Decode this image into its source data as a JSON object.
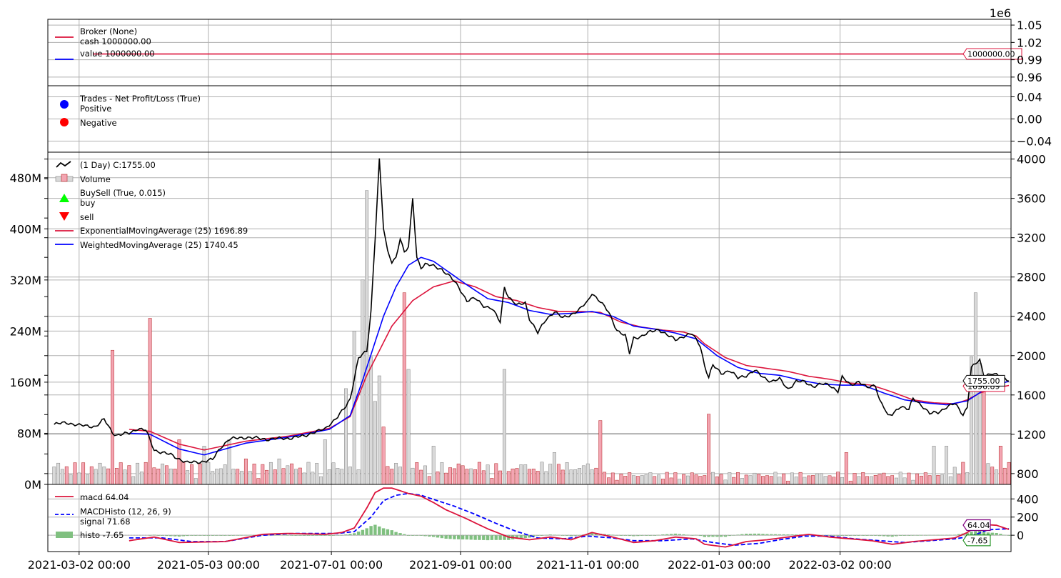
{
  "chart_data": {
    "type": "line",
    "x_axis": {
      "tick_labels": [
        "2021-03-02 00:00",
        "2021-05-03 00:00",
        "2021-07-01 00:00",
        "2021-09-01 00:00",
        "2021-11-01 00:00",
        "2022-01-03 00:00",
        "2022-03-02 00:00"
      ],
      "range_days": [
        -15,
        447
      ]
    },
    "broker_panel": {
      "exponent_label": "1e6",
      "yticks": [
        "1.05",
        "1.02",
        "0.99",
        "0.96"
      ],
      "ylim": [
        0.945,
        1.06
      ],
      "legend": [
        {
          "text": "Broker (None)\ncash 1000000.00",
          "color": "#dc143c"
        },
        {
          "text": "value 1000000.00",
          "color": "#0000ff"
        }
      ],
      "value": 1.0,
      "value_tag": "1000000.00"
    },
    "trades_panel": {
      "yticks": [
        "0.04",
        "0.00",
        "−0.04"
      ],
      "ylim": [
        -0.06,
        0.06
      ],
      "legend": [
        {
          "text": "Trades - Net Profit/Loss (True)\nPositive",
          "color": "#0000ff"
        },
        {
          "text": "Negative",
          "color": "#ff0000"
        }
      ]
    },
    "price_panel": {
      "yticks_right": [
        "4000",
        "3600",
        "3200",
        "2800",
        "2400",
        "2000",
        "1600",
        "1200",
        "800"
      ],
      "yticks_left": [
        "480M",
        "400M",
        "320M",
        "240M",
        "160M",
        "80M",
        "0M"
      ],
      "price_ylim": [
        690,
        4070
      ],
      "volume_ylim": [
        0,
        520
      ],
      "legend": [
        {
          "text": " (1 Day) C:1755.00",
          "kind": "price"
        },
        {
          "text": "Volume",
          "kind": "volume"
        },
        {
          "text": "BuySell (True, 0.015)\nbuy",
          "kind": "buy"
        },
        {
          "text": "sell",
          "kind": "sell"
        },
        {
          "text": "ExponentialMovingAverage (25) 1696.89",
          "kind": "ema"
        },
        {
          "text": "WeightedMovingAverage (25) 1740.45",
          "kind": "wma"
        }
      ],
      "close_tag": "1755.00",
      "ema_tag": "1696.89",
      "close_keypoints": [
        [
          -12,
          1300
        ],
        [
          -6,
          1320
        ],
        [
          0,
          1290
        ],
        [
          8,
          1280
        ],
        [
          12,
          1350
        ],
        [
          16,
          1220
        ],
        [
          18,
          1190
        ],
        [
          24,
          1210
        ],
        [
          28,
          1260
        ],
        [
          32,
          1240
        ],
        [
          36,
          1040
        ],
        [
          44,
          990
        ],
        [
          52,
          910
        ],
        [
          58,
          920
        ],
        [
          64,
          940
        ],
        [
          68,
          1070
        ],
        [
          72,
          1150
        ],
        [
          80,
          1170
        ],
        [
          90,
          1150
        ],
        [
          100,
          1160
        ],
        [
          108,
          1180
        ],
        [
          112,
          1220
        ],
        [
          118,
          1250
        ],
        [
          120,
          1300
        ],
        [
          124,
          1380
        ],
        [
          128,
          1480
        ],
        [
          130,
          1560
        ],
        [
          134,
          1980
        ],
        [
          138,
          2040
        ],
        [
          140,
          2450
        ],
        [
          142,
          3200
        ],
        [
          144,
          4000
        ],
        [
          146,
          3300
        ],
        [
          148,
          3050
        ],
        [
          150,
          2950
        ],
        [
          152,
          3000
        ],
        [
          154,
          3200
        ],
        [
          156,
          3050
        ],
        [
          158,
          3100
        ],
        [
          160,
          3600
        ],
        [
          162,
          3000
        ],
        [
          164,
          2900
        ],
        [
          166,
          2930
        ],
        [
          170,
          2910
        ],
        [
          174,
          2880
        ],
        [
          178,
          2800
        ],
        [
          182,
          2700
        ],
        [
          186,
          2560
        ],
        [
          190,
          2580
        ],
        [
          194,
          2510
        ],
        [
          198,
          2480
        ],
        [
          202,
          2340
        ],
        [
          204,
          2700
        ],
        [
          206,
          2600
        ],
        [
          210,
          2510
        ],
        [
          214,
          2540
        ],
        [
          216,
          2380
        ],
        [
          220,
          2230
        ],
        [
          224,
          2370
        ],
        [
          228,
          2450
        ],
        [
          232,
          2380
        ],
        [
          236,
          2420
        ],
        [
          240,
          2470
        ],
        [
          244,
          2550
        ],
        [
          246,
          2640
        ],
        [
          250,
          2550
        ],
        [
          254,
          2440
        ],
        [
          258,
          2260
        ],
        [
          262,
          2200
        ],
        [
          264,
          2020
        ],
        [
          266,
          2180
        ],
        [
          270,
          2200
        ],
        [
          274,
          2240
        ],
        [
          278,
          2270
        ],
        [
          282,
          2210
        ],
        [
          286,
          2160
        ],
        [
          290,
          2200
        ],
        [
          294,
          2220
        ],
        [
          298,
          2100
        ],
        [
          300,
          1900
        ],
        [
          302,
          1780
        ],
        [
          304,
          1900
        ],
        [
          308,
          1820
        ],
        [
          312,
          1850
        ],
        [
          316,
          1770
        ],
        [
          320,
          1800
        ],
        [
          324,
          1850
        ],
        [
          328,
          1780
        ],
        [
          332,
          1740
        ],
        [
          336,
          1760
        ],
        [
          340,
          1660
        ],
        [
          344,
          1740
        ],
        [
          348,
          1730
        ],
        [
          352,
          1690
        ],
        [
          356,
          1710
        ],
        [
          360,
          1700
        ],
        [
          364,
          1640
        ],
        [
          366,
          1780
        ],
        [
          370,
          1700
        ],
        [
          374,
          1740
        ],
        [
          378,
          1670
        ],
        [
          382,
          1700
        ],
        [
          384,
          1550
        ],
        [
          386,
          1480
        ],
        [
          388,
          1380
        ],
        [
          390,
          1400
        ],
        [
          394,
          1490
        ],
        [
          398,
          1450
        ],
        [
          400,
          1560
        ],
        [
          404,
          1500
        ],
        [
          408,
          1410
        ],
        [
          412,
          1420
        ],
        [
          416,
          1480
        ],
        [
          420,
          1510
        ],
        [
          424,
          1400
        ],
        [
          426,
          1480
        ],
        [
          428,
          1880
        ],
        [
          432,
          1950
        ],
        [
          434,
          1800
        ],
        [
          438,
          1820
        ],
        [
          442,
          1780
        ],
        [
          446,
          1755
        ]
      ],
      "ema_keypoints": [
        [
          24,
          1250
        ],
        [
          34,
          1230
        ],
        [
          48,
          1100
        ],
        [
          60,
          1040
        ],
        [
          80,
          1130
        ],
        [
          100,
          1180
        ],
        [
          120,
          1260
        ],
        [
          130,
          1380
        ],
        [
          138,
          1800
        ],
        [
          150,
          2300
        ],
        [
          160,
          2560
        ],
        [
          170,
          2700
        ],
        [
          180,
          2760
        ],
        [
          190,
          2700
        ],
        [
          200,
          2600
        ],
        [
          210,
          2560
        ],
        [
          220,
          2490
        ],
        [
          230,
          2450
        ],
        [
          240,
          2450
        ],
        [
          250,
          2440
        ],
        [
          260,
          2340
        ],
        [
          270,
          2290
        ],
        [
          280,
          2260
        ],
        [
          290,
          2240
        ],
        [
          296,
          2200
        ],
        [
          300,
          2120
        ],
        [
          310,
          1980
        ],
        [
          320,
          1900
        ],
        [
          330,
          1870
        ],
        [
          340,
          1840
        ],
        [
          350,
          1790
        ],
        [
          360,
          1760
        ],
        [
          370,
          1720
        ],
        [
          380,
          1700
        ],
        [
          390,
          1630
        ],
        [
          400,
          1550
        ],
        [
          410,
          1520
        ],
        [
          420,
          1510
        ],
        [
          426,
          1550
        ],
        [
          432,
          1620
        ],
        [
          440,
          1670
        ],
        [
          446,
          1697
        ]
      ],
      "wma_keypoints": [
        [
          24,
          1210
        ],
        [
          34,
          1200
        ],
        [
          48,
          1050
        ],
        [
          60,
          990
        ],
        [
          80,
          1110
        ],
        [
          100,
          1170
        ],
        [
          120,
          1250
        ],
        [
          130,
          1390
        ],
        [
          136,
          1750
        ],
        [
          146,
          2400
        ],
        [
          152,
          2700
        ],
        [
          158,
          2920
        ],
        [
          164,
          3000
        ],
        [
          170,
          2960
        ],
        [
          176,
          2870
        ],
        [
          186,
          2720
        ],
        [
          196,
          2580
        ],
        [
          206,
          2540
        ],
        [
          216,
          2460
        ],
        [
          226,
          2420
        ],
        [
          236,
          2430
        ],
        [
          246,
          2450
        ],
        [
          256,
          2400
        ],
        [
          266,
          2300
        ],
        [
          276,
          2270
        ],
        [
          286,
          2230
        ],
        [
          296,
          2170
        ],
        [
          306,
          2000
        ],
        [
          316,
          1880
        ],
        [
          326,
          1820
        ],
        [
          336,
          1800
        ],
        [
          346,
          1750
        ],
        [
          356,
          1710
        ],
        [
          366,
          1700
        ],
        [
          376,
          1700
        ],
        [
          386,
          1620
        ],
        [
          396,
          1550
        ],
        [
          406,
          1520
        ],
        [
          416,
          1500
        ],
        [
          426,
          1540
        ],
        [
          434,
          1650
        ],
        [
          440,
          1700
        ],
        [
          446,
          1740
        ]
      ],
      "volume_spikes": [
        [
          16,
          210
        ],
        [
          34,
          260
        ],
        [
          48,
          70
        ],
        [
          60,
          60
        ],
        [
          72,
          70
        ],
        [
          80,
          40
        ],
        [
          96,
          40
        ],
        [
          118,
          70
        ],
        [
          128,
          150
        ],
        [
          132,
          240
        ],
        [
          136,
          320
        ],
        [
          138,
          460
        ],
        [
          140,
          200
        ],
        [
          142,
          130
        ],
        [
          144,
          170
        ],
        [
          146,
          90
        ],
        [
          156,
          300
        ],
        [
          158,
          180
        ],
        [
          170,
          60
        ],
        [
          204,
          180
        ],
        [
          228,
          50
        ],
        [
          250,
          100
        ],
        [
          302,
          110
        ],
        [
          368,
          50
        ],
        [
          410,
          60
        ],
        [
          416,
          60
        ],
        [
          428,
          200
        ],
        [
          430,
          300
        ],
        [
          432,
          190
        ],
        [
          434,
          150
        ],
        [
          442,
          60
        ]
      ]
    },
    "macd_panel": {
      "yticks": [
        "400",
        "200",
        "0"
      ],
      "ylim": [
        -180,
        560
      ],
      "legend": [
        {
          "text": "macd 64.04",
          "kind": "macd"
        },
        {
          "text": "MACDHisto (12, 26, 9)\nsignal 71.68",
          "kind": "signal"
        },
        {
          "text": "histo -7.65",
          "kind": "histo"
        }
      ],
      "macd_tag": "64.04",
      "histo_tag": "-7.65",
      "macd_keypoints": [
        [
          24,
          -60
        ],
        [
          36,
          -20
        ],
        [
          48,
          -80
        ],
        [
          70,
          -70
        ],
        [
          88,
          10
        ],
        [
          100,
          20
        ],
        [
          118,
          10
        ],
        [
          126,
          30
        ],
        [
          132,
          80
        ],
        [
          138,
          300
        ],
        [
          142,
          470
        ],
        [
          146,
          520
        ],
        [
          150,
          520
        ],
        [
          154,
          490
        ],
        [
          158,
          460
        ],
        [
          164,
          430
        ],
        [
          170,
          360
        ],
        [
          176,
          280
        ],
        [
          186,
          180
        ],
        [
          196,
          70
        ],
        [
          206,
          -20
        ],
        [
          216,
          -50
        ],
        [
          226,
          -20
        ],
        [
          236,
          -50
        ],
        [
          246,
          30
        ],
        [
          256,
          -20
        ],
        [
          266,
          -80
        ],
        [
          276,
          -60
        ],
        [
          286,
          -20
        ],
        [
          296,
          -40
        ],
        [
          300,
          -100
        ],
        [
          310,
          -130
        ],
        [
          320,
          -70
        ],
        [
          330,
          -50
        ],
        [
          340,
          -20
        ],
        [
          350,
          10
        ],
        [
          360,
          -20
        ],
        [
          370,
          -40
        ],
        [
          380,
          -60
        ],
        [
          390,
          -100
        ],
        [
          400,
          -70
        ],
        [
          410,
          -50
        ],
        [
          420,
          -30
        ],
        [
          426,
          30
        ],
        [
          432,
          120
        ],
        [
          440,
          110
        ],
        [
          446,
          64
        ]
      ],
      "signal_keypoints": [
        [
          24,
          -30
        ],
        [
          40,
          -30
        ],
        [
          54,
          -70
        ],
        [
          70,
          -70
        ],
        [
          88,
          0
        ],
        [
          104,
          20
        ],
        [
          124,
          20
        ],
        [
          132,
          40
        ],
        [
          140,
          200
        ],
        [
          146,
          380
        ],
        [
          152,
          440
        ],
        [
          158,
          460
        ],
        [
          164,
          440
        ],
        [
          172,
          380
        ],
        [
          180,
          320
        ],
        [
          190,
          230
        ],
        [
          200,
          130
        ],
        [
          210,
          40
        ],
        [
          220,
          -30
        ],
        [
          232,
          -40
        ],
        [
          244,
          -10
        ],
        [
          256,
          -30
        ],
        [
          266,
          -60
        ],
        [
          280,
          -60
        ],
        [
          294,
          -40
        ],
        [
          304,
          -80
        ],
        [
          314,
          -110
        ],
        [
          326,
          -90
        ],
        [
          336,
          -50
        ],
        [
          348,
          -10
        ],
        [
          360,
          -10
        ],
        [
          372,
          -40
        ],
        [
          384,
          -60
        ],
        [
          396,
          -80
        ],
        [
          408,
          -60
        ],
        [
          420,
          -40
        ],
        [
          428,
          -10
        ],
        [
          436,
          60
        ],
        [
          446,
          72
        ]
      ]
    }
  }
}
